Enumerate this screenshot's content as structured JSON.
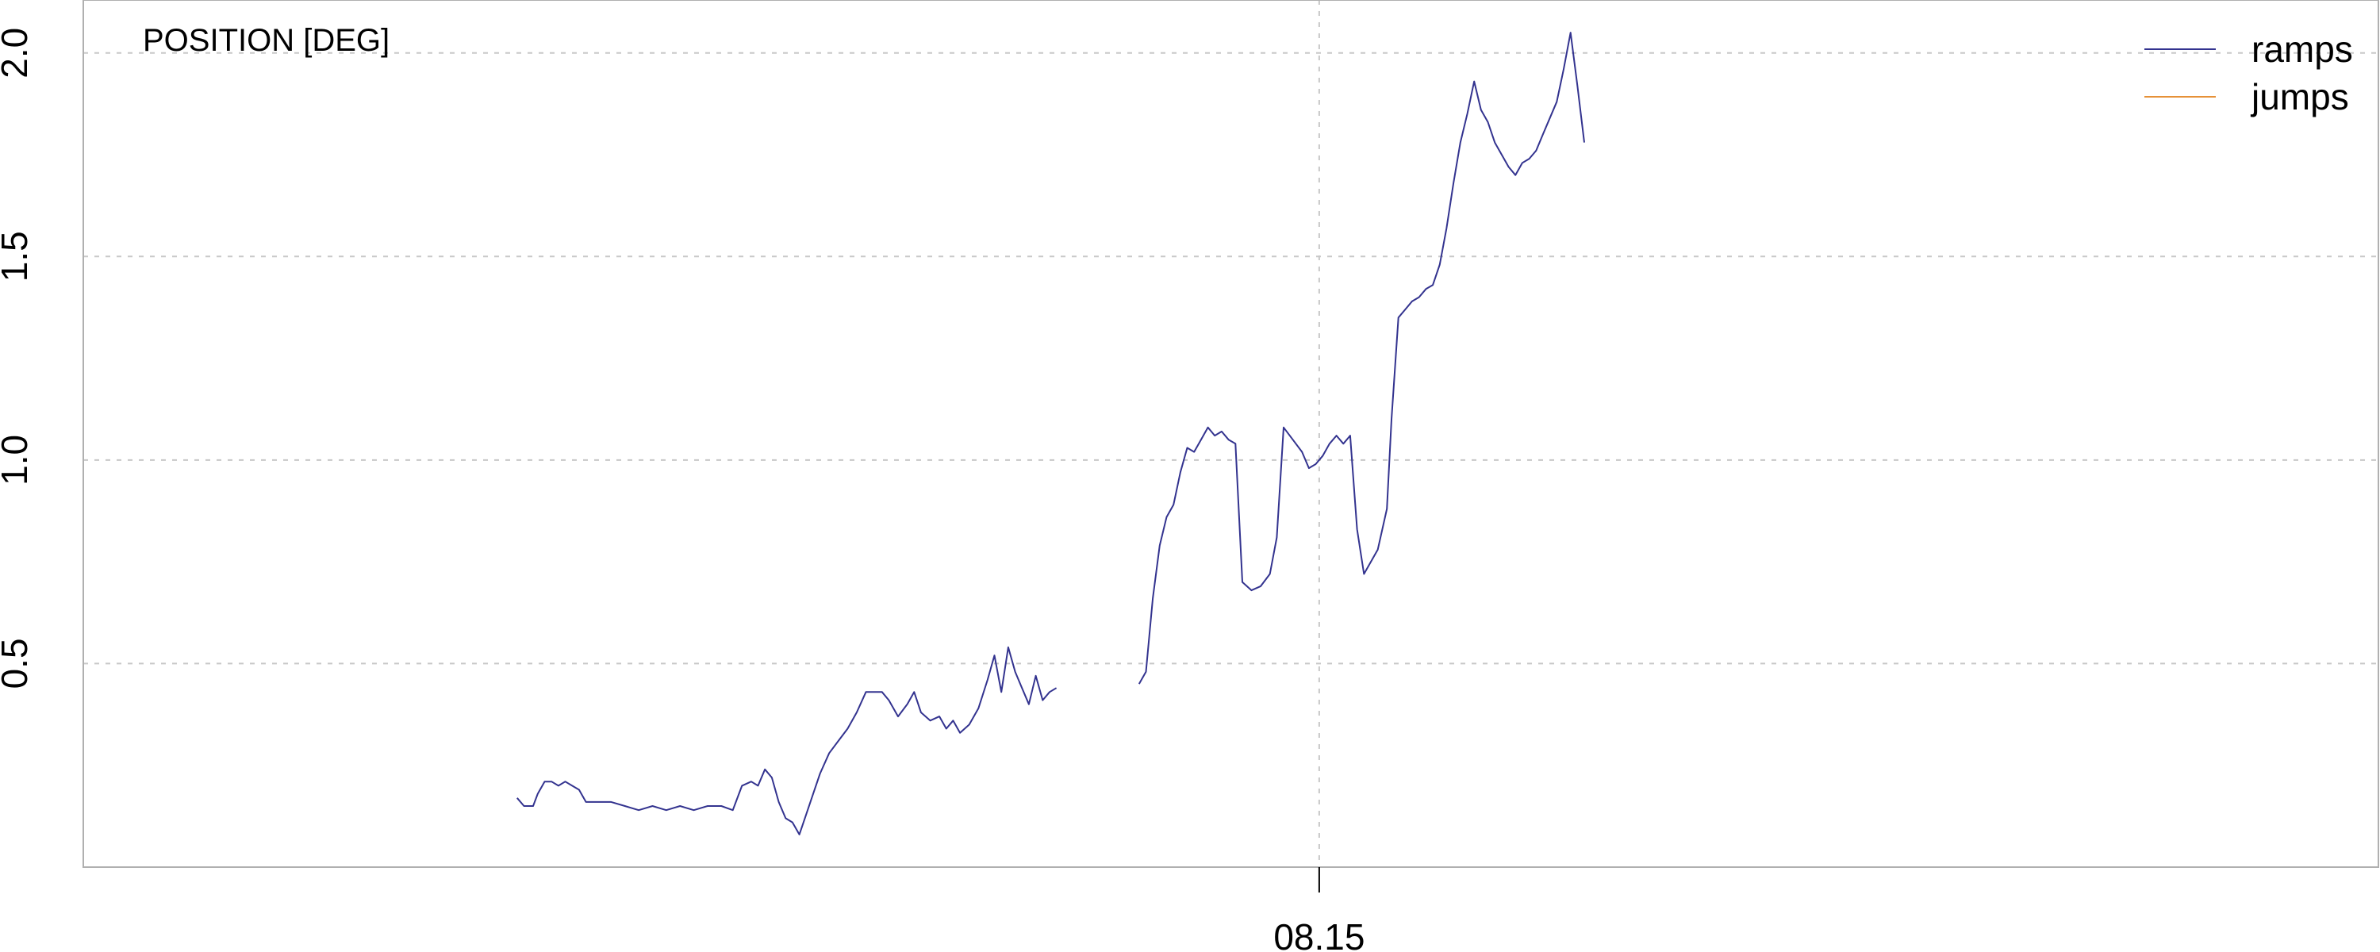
{
  "chart_data": {
    "type": "line",
    "title": "POSITION  [DEG]",
    "xlabel": "",
    "ylabel": "",
    "x_tick_labels": [
      "08.15"
    ],
    "y_ticks": [
      0.5,
      1.0,
      1.5,
      2.0
    ],
    "y_tick_labels": [
      "0.5",
      "1.0",
      "1.5",
      "2.0"
    ],
    "ylim": [
      0.0,
      2.13
    ],
    "grid": true,
    "legend_position": "top-right",
    "series": [
      {
        "name": "ramps",
        "color": "#33338f",
        "segments": [
          [
            [
              0.189,
              0.17
            ],
            [
              0.192,
              0.15
            ],
            [
              0.196,
              0.15
            ],
            [
              0.198,
              0.18
            ],
            [
              0.201,
              0.21
            ],
            [
              0.204,
              0.21
            ],
            [
              0.207,
              0.2
            ],
            [
              0.21,
              0.21
            ],
            [
              0.213,
              0.2
            ],
            [
              0.216,
              0.19
            ],
            [
              0.219,
              0.16
            ],
            [
              0.224,
              0.16
            ],
            [
              0.23,
              0.16
            ],
            [
              0.236,
              0.15
            ],
            [
              0.242,
              0.14
            ],
            [
              0.248,
              0.15
            ],
            [
              0.254,
              0.14
            ],
            [
              0.26,
              0.15
            ],
            [
              0.266,
              0.14
            ],
            [
              0.272,
              0.15
            ],
            [
              0.278,
              0.15
            ],
            [
              0.283,
              0.14
            ],
            [
              0.287,
              0.2
            ],
            [
              0.291,
              0.21
            ],
            [
              0.294,
              0.2
            ],
            [
              0.297,
              0.24
            ],
            [
              0.3,
              0.22
            ],
            [
              0.303,
              0.16
            ],
            [
              0.306,
              0.12
            ],
            [
              0.309,
              0.11
            ],
            [
              0.312,
              0.08
            ],
            [
              0.315,
              0.13
            ],
            [
              0.318,
              0.18
            ],
            [
              0.321,
              0.23
            ],
            [
              0.325,
              0.28
            ],
            [
              0.329,
              0.31
            ],
            [
              0.333,
              0.34
            ],
            [
              0.337,
              0.38
            ],
            [
              0.341,
              0.43
            ],
            [
              0.345,
              0.43
            ],
            [
              0.348,
              0.43
            ],
            [
              0.351,
              0.41
            ],
            [
              0.355,
              0.37
            ],
            [
              0.359,
              0.4
            ],
            [
              0.362,
              0.43
            ],
            [
              0.365,
              0.38
            ],
            [
              0.369,
              0.36
            ],
            [
              0.373,
              0.37
            ],
            [
              0.376,
              0.34
            ],
            [
              0.379,
              0.36
            ],
            [
              0.382,
              0.33
            ],
            [
              0.386,
              0.35
            ],
            [
              0.39,
              0.39
            ],
            [
              0.394,
              0.46
            ],
            [
              0.397,
              0.52
            ],
            [
              0.4,
              0.43
            ],
            [
              0.403,
              0.54
            ],
            [
              0.406,
              0.48
            ],
            [
              0.409,
              0.44
            ],
            [
              0.412,
              0.4
            ],
            [
              0.415,
              0.47
            ],
            [
              0.418,
              0.41
            ],
            [
              0.421,
              0.43
            ],
            [
              0.424,
              0.44
            ]
          ],
          [
            [
              0.46,
              0.45
            ],
            [
              0.463,
              0.48
            ],
            [
              0.466,
              0.66
            ],
            [
              0.469,
              0.79
            ],
            [
              0.472,
              0.86
            ],
            [
              0.475,
              0.89
            ],
            [
              0.478,
              0.97
            ],
            [
              0.481,
              1.03
            ],
            [
              0.484,
              1.02
            ],
            [
              0.487,
              1.05
            ],
            [
              0.49,
              1.08
            ],
            [
              0.493,
              1.06
            ],
            [
              0.496,
              1.07
            ],
            [
              0.499,
              1.05
            ],
            [
              0.502,
              1.04
            ],
            [
              0.505,
              0.7
            ],
            [
              0.509,
              0.68
            ],
            [
              0.513,
              0.69
            ],
            [
              0.517,
              0.72
            ],
            [
              0.52,
              0.81
            ],
            [
              0.523,
              1.08
            ],
            [
              0.527,
              1.05
            ],
            [
              0.531,
              1.02
            ],
            [
              0.534,
              0.98
            ],
            [
              0.537,
              0.99
            ],
            [
              0.54,
              1.01
            ],
            [
              0.543,
              1.04
            ],
            [
              0.546,
              1.06
            ],
            [
              0.549,
              1.04
            ],
            [
              0.552,
              1.06
            ],
            [
              0.555,
              0.83
            ],
            [
              0.558,
              0.72
            ],
            [
              0.561,
              0.75
            ],
            [
              0.564,
              0.78
            ],
            [
              0.568,
              0.88
            ],
            [
              0.57,
              1.1
            ],
            [
              0.573,
              1.35
            ],
            [
              0.576,
              1.37
            ],
            [
              0.579,
              1.39
            ],
            [
              0.582,
              1.4
            ],
            [
              0.585,
              1.42
            ],
            [
              0.588,
              1.43
            ],
            [
              0.591,
              1.48
            ],
            [
              0.594,
              1.57
            ],
            [
              0.597,
              1.68
            ],
            [
              0.6,
              1.78
            ],
            [
              0.603,
              1.85
            ],
            [
              0.606,
              1.93
            ],
            [
              0.609,
              1.86
            ],
            [
              0.612,
              1.83
            ],
            [
              0.615,
              1.78
            ],
            [
              0.618,
              1.75
            ],
            [
              0.621,
              1.72
            ],
            [
              0.624,
              1.7
            ],
            [
              0.627,
              1.73
            ],
            [
              0.63,
              1.74
            ],
            [
              0.633,
              1.76
            ],
            [
              0.636,
              1.8
            ],
            [
              0.639,
              1.84
            ],
            [
              0.642,
              1.88
            ],
            [
              0.645,
              1.96
            ],
            [
              0.648,
              2.05
            ],
            [
              0.651,
              1.92
            ],
            [
              0.654,
              1.78
            ]
          ]
        ]
      },
      {
        "name": "jumps",
        "color": "#e69138",
        "segments": []
      }
    ]
  }
}
